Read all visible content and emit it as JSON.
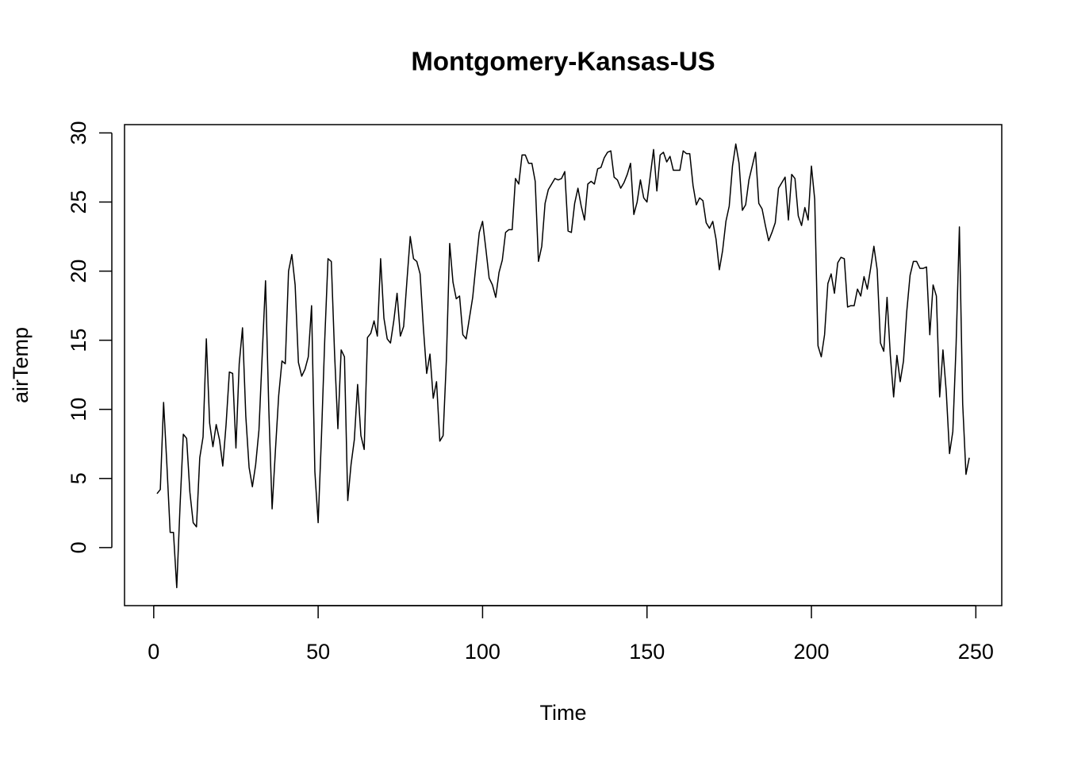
{
  "chart_data": {
    "type": "line",
    "title": "Montgomery-Kansas-US",
    "x_label": "Time",
    "y_label": "airTemp",
    "color": "#000000",
    "x": [
      1,
      2,
      3,
      4,
      5,
      6,
      7,
      8,
      9,
      10,
      11,
      12,
      13,
      14,
      15,
      16,
      17,
      18,
      19,
      20,
      21,
      22,
      23,
      24,
      25,
      26,
      27,
      28,
      29,
      30,
      31,
      32,
      33,
      34,
      35,
      36,
      37,
      38,
      39,
      40,
      41,
      42,
      43,
      44,
      45,
      46,
      47,
      48,
      49,
      50,
      51,
      52,
      53,
      54,
      55,
      56,
      57,
      58,
      59,
      60,
      61,
      62,
      63,
      64,
      65,
      66,
      67,
      68,
      69,
      70,
      71,
      72,
      73,
      74,
      75,
      76,
      77,
      78,
      79,
      80,
      81,
      82,
      83,
      84,
      85,
      86,
      87,
      88,
      89,
      90,
      91,
      92,
      93,
      94,
      95,
      96,
      97,
      98,
      99,
      100,
      101,
      102,
      103,
      104,
      105,
      106,
      107,
      108,
      109,
      110,
      111,
      112,
      113,
      114,
      115,
      116,
      117,
      118,
      119,
      120,
      121,
      122,
      123,
      124,
      125,
      126,
      127,
      128,
      129,
      130,
      131,
      132,
      133,
      134,
      135,
      136,
      137,
      138,
      139,
      140,
      141,
      142,
      143,
      144,
      145,
      146,
      147,
      148,
      149,
      150,
      151,
      152,
      153,
      154,
      155,
      156,
      157,
      158,
      159,
      160,
      161,
      162,
      163,
      164,
      165,
      166,
      167,
      168,
      169,
      170,
      171,
      172,
      173,
      174,
      175,
      176,
      177,
      178,
      179,
      180,
      181,
      182,
      183,
      184,
      185,
      186,
      187,
      188,
      189,
      190,
      191,
      192,
      193,
      194,
      195,
      196,
      197,
      198,
      199,
      200,
      201,
      202,
      203,
      204,
      205,
      206,
      207,
      208,
      209,
      210,
      211,
      212,
      213,
      214,
      215,
      216,
      217,
      218,
      219,
      220,
      221,
      222,
      223,
      224,
      225,
      226,
      227,
      228,
      229,
      230,
      231,
      232,
      233,
      234,
      235,
      236,
      237,
      238,
      239,
      240,
      241,
      242,
      243,
      244,
      245,
      246,
      247,
      248
    ],
    "values": [
      3.9,
      4.2,
      10.5,
      6.0,
      1.1,
      1.1,
      -2.9,
      3.0,
      8.2,
      7.9,
      4.0,
      1.8,
      1.5,
      6.5,
      8.0,
      15.1,
      9.0,
      7.3,
      8.9,
      7.8,
      5.9,
      8.9,
      12.7,
      12.6,
      7.2,
      13.3,
      15.9,
      9.5,
      5.8,
      4.4,
      6.0,
      8.5,
      14.0,
      19.3,
      10.0,
      2.8,
      7.0,
      11.0,
      13.5,
      13.3,
      20.0,
      21.2,
      19.0,
      13.4,
      12.4,
      12.9,
      13.8,
      17.5,
      5.5,
      1.8,
      8.0,
      15.0,
      20.9,
      20.7,
      14.0,
      8.6,
      14.3,
      13.8,
      3.4,
      6.0,
      7.8,
      11.8,
      8.1,
      7.1,
      15.2,
      15.5,
      16.4,
      15.3,
      20.9,
      16.6,
      15.1,
      14.8,
      16.4,
      18.4,
      15.3,
      16.0,
      19.3,
      22.5,
      20.9,
      20.7,
      19.8,
      15.9,
      12.6,
      14.0,
      10.8,
      12.0,
      7.7,
      8.1,
      13.6,
      22.0,
      19.2,
      18.0,
      18.2,
      15.4,
      15.1,
      16.6,
      18.1,
      20.5,
      22.8,
      23.6,
      21.6,
      19.5,
      19.0,
      18.1,
      19.9,
      20.8,
      22.8,
      23.0,
      23.0,
      26.7,
      26.3,
      28.4,
      28.4,
      27.8,
      27.8,
      26.5,
      20.7,
      21.8,
      24.9,
      25.9,
      26.3,
      26.7,
      26.6,
      26.7,
      27.2,
      22.9,
      22.8,
      24.9,
      26.0,
      24.7,
      23.7,
      26.3,
      26.5,
      26.3,
      27.4,
      27.5,
      28.2,
      28.6,
      28.7,
      26.8,
      26.6,
      26.0,
      26.4,
      27.0,
      27.8,
      24.1,
      25.0,
      26.6,
      25.3,
      25.0,
      26.9,
      28.8,
      25.8,
      28.4,
      28.6,
      27.9,
      28.3,
      27.3,
      27.3,
      27.3,
      28.7,
      28.5,
      28.5,
      26.2,
      24.8,
      25.3,
      25.1,
      23.5,
      23.1,
      23.6,
      22.3,
      20.1,
      21.5,
      23.6,
      24.7,
      27.6,
      29.2,
      27.8,
      24.4,
      24.8,
      26.6,
      27.6,
      28.6,
      24.9,
      24.5,
      23.3,
      22.2,
      22.8,
      23.5,
      26.0,
      26.4,
      26.8,
      23.7,
      27.0,
      26.7,
      24.0,
      23.3,
      24.6,
      23.7,
      27.6,
      25.2,
      14.6,
      13.8,
      15.4,
      19.1,
      19.8,
      18.4,
      20.6,
      21.0,
      20.9,
      17.4,
      17.5,
      17.5,
      18.7,
      18.2,
      19.6,
      18.7,
      20.2,
      21.8,
      20.1,
      14.8,
      14.2,
      18.1,
      13.9,
      10.9,
      13.9,
      12.0,
      13.5,
      17.1,
      19.7,
      20.7,
      20.7,
      20.2,
      20.2,
      20.3,
      15.4,
      19.0,
      18.2,
      10.9,
      14.3,
      11.3,
      6.8,
      8.4,
      14.7,
      23.2,
      10.4,
      5.3,
      6.5
    ],
    "xlim": [
      -8.88,
      257.88
    ],
    "xticks": [
      0,
      50,
      100,
      150,
      200,
      250
    ],
    "ylim": [
      -4.2,
      30.6
    ],
    "yticks": [
      0,
      5,
      10,
      15,
      20,
      25,
      30
    ]
  }
}
